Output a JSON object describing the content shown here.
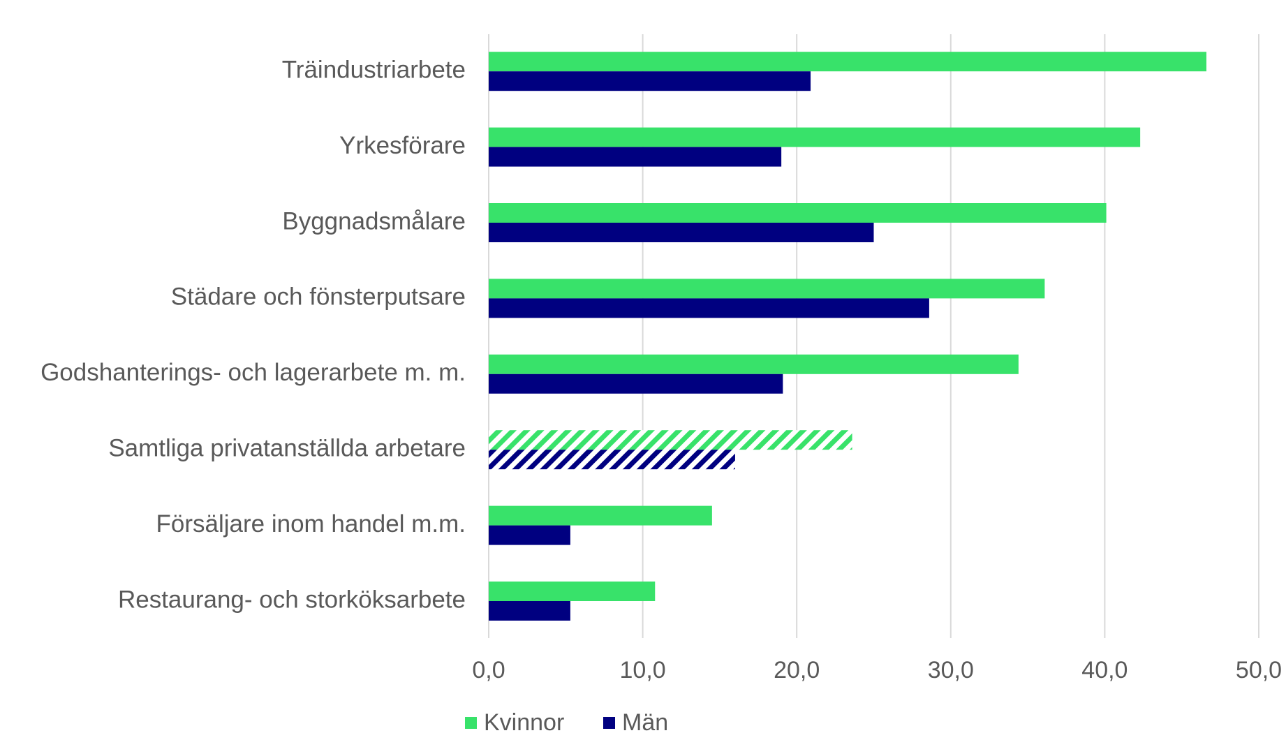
{
  "chart_data": {
    "type": "hbar",
    "categories": [
      "Träindustriarbete",
      "Yrkesförare",
      "Byggnadsmålare",
      "Städare och fönsterputsare",
      "Godshanterings- och lagerarbete m. m.",
      "Samtliga privatanställda arbetare",
      "Försäljare inom handel m.m.",
      "Restaurang- och storköksarbete"
    ],
    "series": [
      {
        "name": "Kvinnor",
        "color": "#38e26a",
        "values": [
          46.6,
          42.3,
          40.1,
          36.1,
          34.4,
          23.6,
          14.5,
          10.8
        ]
      },
      {
        "name": "Män",
        "color": "#000080",
        "values": [
          20.9,
          19.0,
          25.0,
          28.6,
          19.1,
          16.0,
          5.3,
          5.3
        ]
      }
    ],
    "hatched": [
      5
    ],
    "xlim": [
      0,
      50
    ],
    "xticks": [
      {
        "value": 0,
        "label": "0,0"
      },
      {
        "value": 10,
        "label": "10,0"
      },
      {
        "value": 20,
        "label": "20,0"
      },
      {
        "value": 30,
        "label": "30,0"
      },
      {
        "value": 40,
        "label": "40,0"
      },
      {
        "value": 50,
        "label": "50,0"
      }
    ],
    "grid": true,
    "legend": "bottom"
  }
}
